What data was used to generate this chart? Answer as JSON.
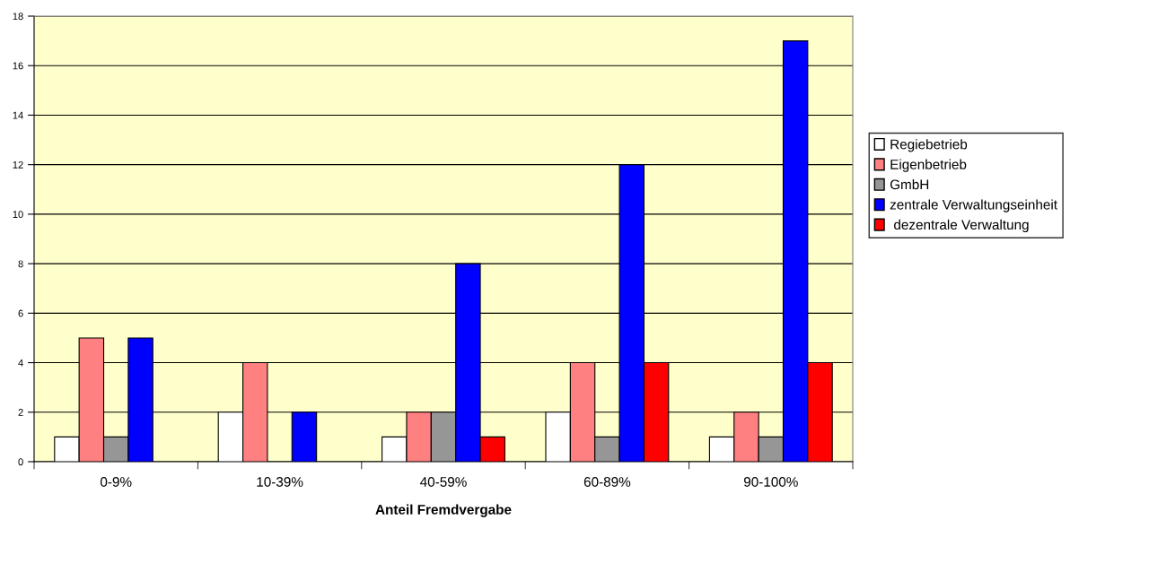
{
  "chart_data": {
    "type": "bar",
    "xlabel": "Anteil Fremdvergabe",
    "categories": [
      "0-9%",
      "10-39%",
      "40-59%",
      "60-89%",
      "90-100%"
    ],
    "series": [
      {
        "name": "Regiebetrieb",
        "color": "#ffffff",
        "values": [
          1,
          2,
          1,
          2,
          1
        ]
      },
      {
        "name": "Eigenbetrieb",
        "color": "#ff8080",
        "values": [
          5,
          4,
          2,
          4,
          2
        ]
      },
      {
        "name": "GmbH",
        "color": "#969696",
        "values": [
          1,
          null,
          2,
          1,
          1
        ]
      },
      {
        "name": "zentrale Verwaltungseinheit",
        "color": "#0000ff",
        "values": [
          5,
          2,
          8,
          12,
          17
        ]
      },
      {
        "name": " dezentrale Verwaltung",
        "color": "#ff0000",
        "values": [
          null,
          null,
          1,
          4,
          4
        ]
      }
    ],
    "ylim": [
      0,
      18
    ],
    "yticks": [
      0,
      2,
      4,
      6,
      8,
      10,
      12,
      14,
      16,
      18
    ],
    "grid": "y",
    "legend": "right"
  }
}
